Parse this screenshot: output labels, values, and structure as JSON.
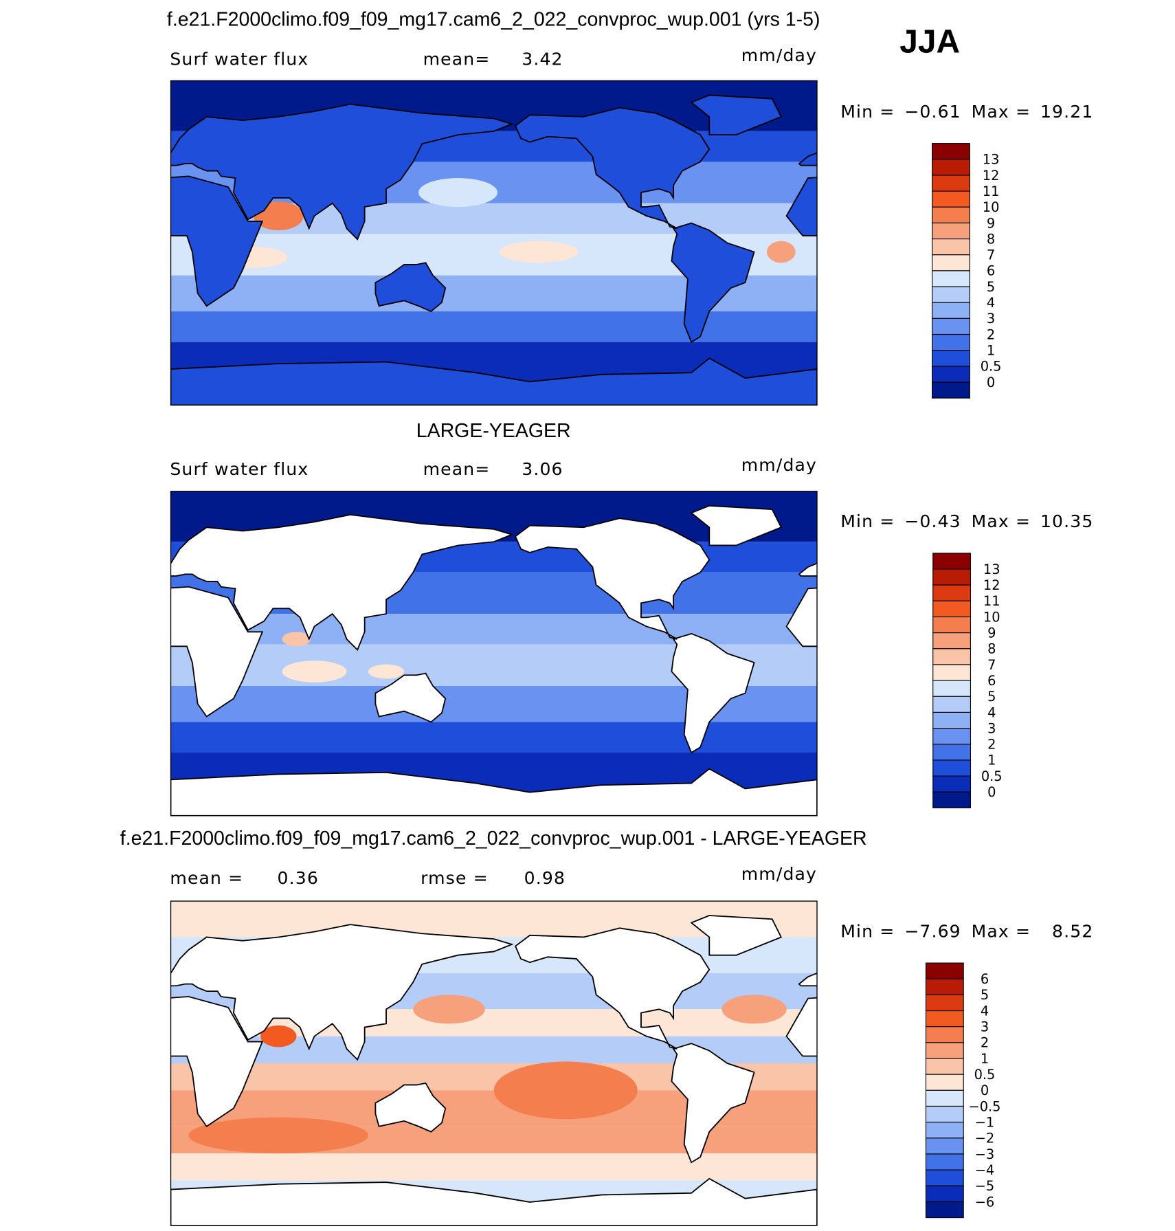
{
  "header": {
    "title": "f.e21.F2000climo.f09_f09_mg17.cam6_2_022_convproc_wup.001 (yrs 1-5)",
    "season": "JJA"
  },
  "panels": [
    {
      "left_label": "Surf water flux",
      "mean_label": "mean=",
      "mean": "3.42",
      "units": "mm/day",
      "min_label": "Min =",
      "min": "−0.61",
      "max_label": "Max =",
      "max": "19.21",
      "colorbar": {
        "labels": [
          "13",
          "12",
          "11",
          "10",
          "9",
          "8",
          "7",
          "6",
          "5",
          "4",
          "3",
          "2",
          "1",
          "0.5",
          "0"
        ],
        "colors": [
          "#8b0000",
          "#b81c05",
          "#dc3a10",
          "#f25a22",
          "#f47e4e",
          "#f6a07c",
          "#f9c4a8",
          "#fde6d6",
          "#d6e6fb",
          "#b4cdf8",
          "#8eb0f5",
          "#6a92f0",
          "#4272e8",
          "#1f4fda",
          "#0a2cb8",
          "#001a8c"
        ]
      }
    },
    {
      "title": "LARGE-YEAGER",
      "left_label": "Surf water flux",
      "mean_label": "mean=",
      "mean": "3.06",
      "units": "mm/day",
      "min_label": "Min =",
      "min": "−0.43",
      "max_label": "Max =",
      "max": "10.35",
      "colorbar": {
        "labels": [
          "13",
          "12",
          "11",
          "10",
          "9",
          "8",
          "7",
          "6",
          "5",
          "4",
          "3",
          "2",
          "1",
          "0.5",
          "0"
        ],
        "colors": [
          "#8b0000",
          "#b81c05",
          "#dc3a10",
          "#f25a22",
          "#f47e4e",
          "#f6a07c",
          "#f9c4a8",
          "#fde6d6",
          "#d6e6fb",
          "#b4cdf8",
          "#8eb0f5",
          "#6a92f0",
          "#4272e8",
          "#1f4fda",
          "#0a2cb8",
          "#001a8c"
        ]
      }
    },
    {
      "title": "f.e21.F2000climo.f09_f09_mg17.cam6_2_022_convproc_wup.001 - LARGE-YEAGER",
      "mean_label": "mean =",
      "mean": "0.36",
      "rmse_label": "rmse =",
      "rmse": "0.98",
      "units": "mm/day",
      "min_label": "Min =",
      "min": "−7.69",
      "max_label": "Max =",
      "max": "8.52",
      "colorbar": {
        "labels": [
          "6",
          "5",
          "4",
          "3",
          "2",
          "1",
          "0.5",
          "0",
          "−0.5",
          "−1",
          "−2",
          "−3",
          "−4",
          "−5",
          "−6"
        ],
        "colors": [
          "#8b0000",
          "#b81c05",
          "#dc3a10",
          "#f25a22",
          "#f47e4e",
          "#f6a07c",
          "#f9c4a8",
          "#fde6d6",
          "#d6e6fb",
          "#b4cdf8",
          "#8eb0f5",
          "#6a92f0",
          "#4272e8",
          "#1f4fda",
          "#0a2cb8",
          "#001a8c"
        ]
      }
    }
  ]
}
